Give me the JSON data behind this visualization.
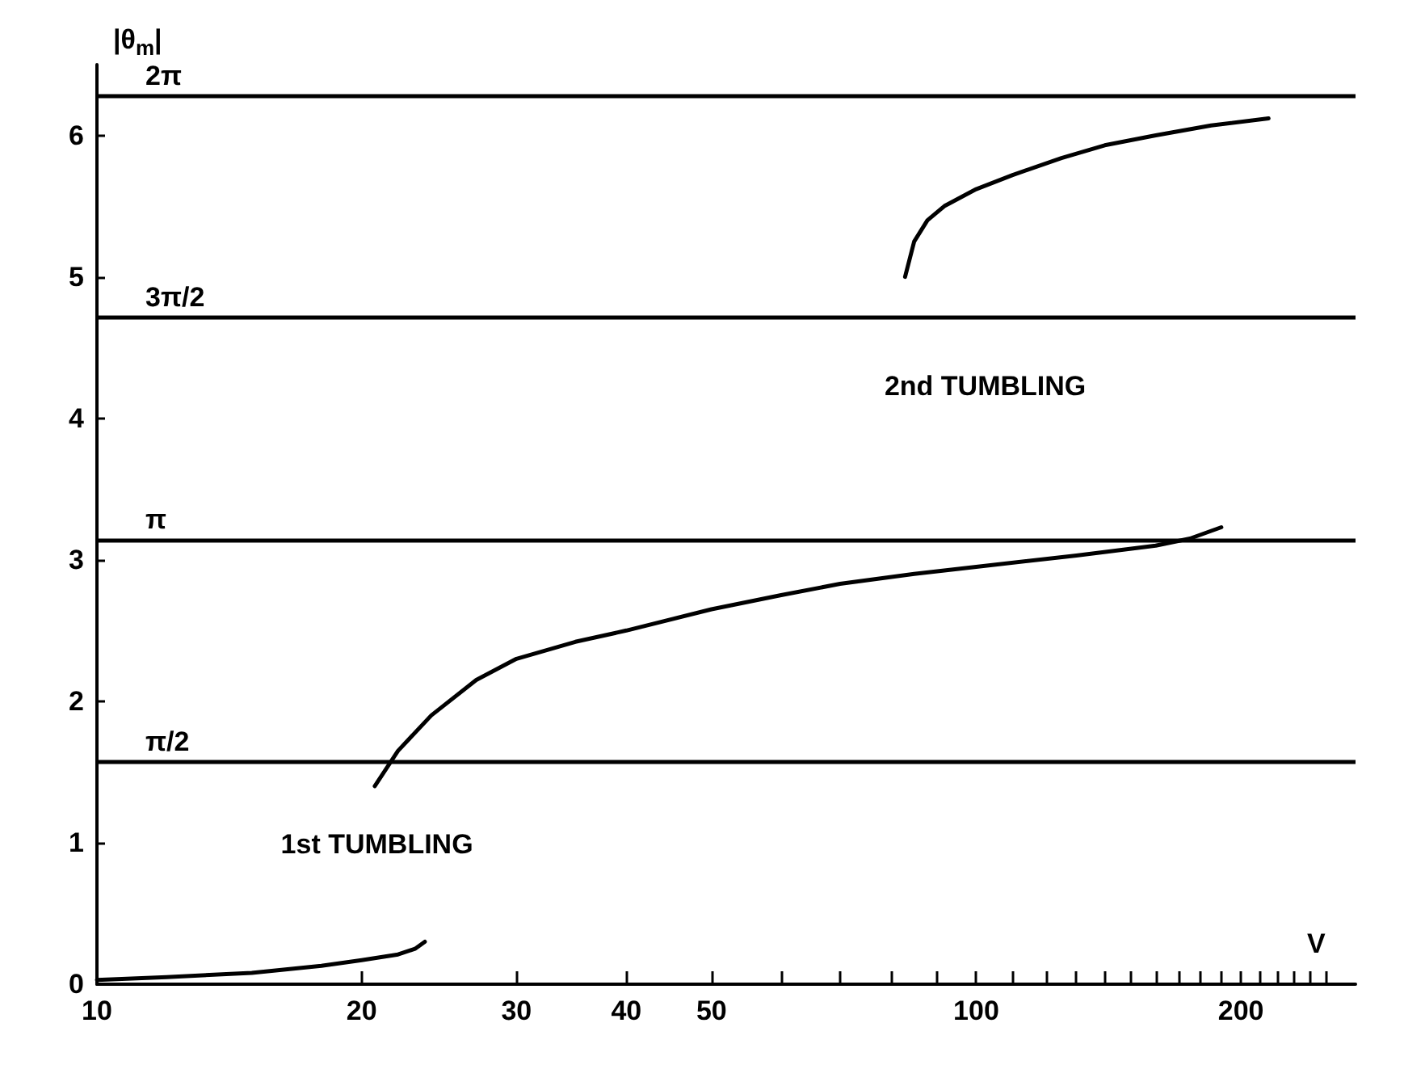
{
  "chart_data": {
    "type": "line",
    "xlabel": "V",
    "ylabel": "|θ$_{m}$|",
    "log": "x",
    "grid": false,
    "marker": "none",
    "line_style": "solid",
    "xlim": [
      10,
      270
    ],
    "ylim": [
      0,
      6.5
    ],
    "xticks": [
      10,
      20,
      30,
      40,
      50,
      {
        "value": 60,
        "label": null
      },
      {
        "value": 70,
        "label": null
      },
      {
        "value": 80,
        "label": null
      },
      {
        "value": 90,
        "label": null
      },
      100,
      {
        "value": 110,
        "label": null
      },
      {
        "value": 120,
        "label": null
      },
      {
        "value": 130,
        "label": null
      },
      {
        "value": 140,
        "label": null
      },
      {
        "value": 150,
        "label": null
      },
      {
        "value": 160,
        "label": null
      },
      {
        "value": 170,
        "label": null
      },
      {
        "value": 180,
        "label": null
      },
      {
        "value": 190,
        "label": null
      },
      200,
      {
        "value": 210,
        "label": null
      },
      {
        "value": 220,
        "label": null
      },
      {
        "value": 230,
        "label": null
      },
      {
        "value": 240,
        "label": null
      },
      {
        "value": 250,
        "label": null
      }
    ],
    "yticks": [
      0,
      1,
      2,
      3,
      4,
      5,
      6
    ],
    "series": [
      {
        "color": "#000000",
        "x": [
          10,
          12,
          15,
          18,
          20,
          22,
          23,
          23.6
        ],
        "values": [
          0.03,
          0.05,
          0.08,
          0.13,
          0.17,
          0.21,
          0.25,
          0.3
        ]
      },
      {
        "color": "#000000",
        "x": [
          20.7,
          22,
          24,
          27,
          30,
          35,
          40,
          50,
          60,
          70,
          85,
          100,
          130,
          160,
          175,
          190
        ],
        "values": [
          1.4,
          1.65,
          1.9,
          2.15,
          2.3,
          2.42,
          2.5,
          2.65,
          2.75,
          2.83,
          2.9,
          2.95,
          3.03,
          3.1,
          3.15,
          3.23
        ]
      },
      {
        "color": "#000000",
        "x": [
          83,
          85,
          88,
          92,
          100,
          110,
          125,
          140,
          160,
          185,
          215
        ],
        "values": [
          5.0,
          5.25,
          5.4,
          5.5,
          5.62,
          5.72,
          5.84,
          5.93,
          6.0,
          6.07,
          6.12
        ]
      }
    ],
    "ref_lines": [
      {
        "axis": "y",
        "value": 1.5708,
        "label": "π/2",
        "color": "#000000"
      },
      {
        "axis": "y",
        "value": 3.1416,
        "label": "π",
        "color": "#000000"
      },
      {
        "axis": "y",
        "value": 4.7124,
        "label": "3π/2",
        "color": "#000000"
      },
      {
        "axis": "y",
        "value": 6.2832,
        "label": "2π",
        "color": "#000000"
      }
    ],
    "annotations": [
      "1st TUMBLING",
      "2nd TUMBLING"
    ]
  }
}
